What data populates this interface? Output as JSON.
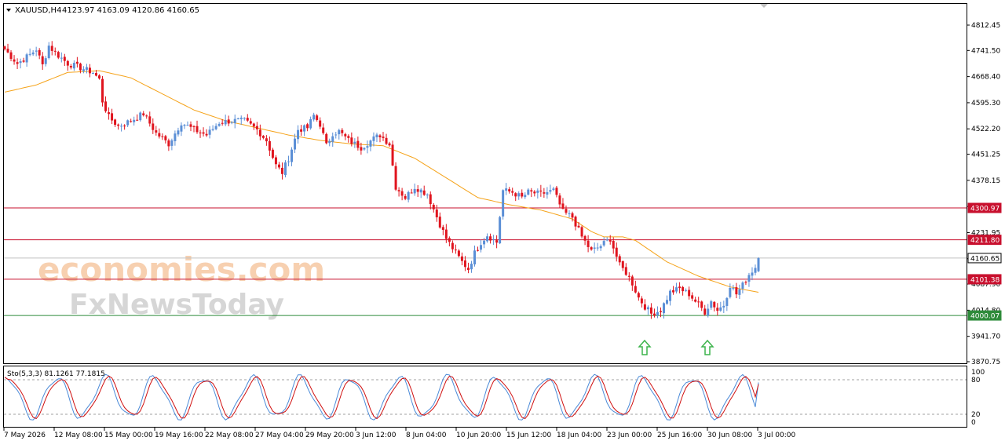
{
  "header": {
    "symbol": "XAUUSD,H4",
    "ohlc": "4123.97 4163.09 4120.86 4160.65"
  },
  "watermark": {
    "line1": "economies.com",
    "line2": "FxNewsToday"
  },
  "colors": {
    "up": "#5b8fd6",
    "down": "#e0141e",
    "ma": "#f5a31a",
    "resistance": "#c8102e",
    "support": "#2e8b3a",
    "price_line": "#c0c0c0",
    "arrow": "#3cb44b",
    "sto_main": "#4a8ad8",
    "sto_signal": "#d01010"
  },
  "price_axis_ticks": [
    "4812.45",
    "4741.50",
    "4668.40",
    "4595.30",
    "4522.20",
    "4451.25",
    "4378.15",
    "4305.05",
    "4231.95",
    "4158.85",
    "4087.90",
    "4014.80",
    "3941.70",
    "3870.75"
  ],
  "time_axis_labels": [
    "7 May 2026",
    "12 May 08:00",
    "15 May 00:00",
    "19 May 16:00",
    "22 May 08:00",
    "27 May 04:00",
    "29 May 20:00",
    "3 Jun 12:00",
    "8 Jun 04:00",
    "10 Jun 20:00",
    "15 Jun 12:00",
    "18 Jun 04:00",
    "23 Jun 00:00",
    "25 Jun 16:00",
    "30 Jun 08:00",
    "3 Jul 00:00"
  ],
  "level_tags": [
    {
      "name": "resistance-3",
      "value": "4300.97",
      "kind": "resistance"
    },
    {
      "name": "resistance-2",
      "value": "4211.80",
      "kind": "resistance"
    },
    {
      "name": "current-price",
      "value": "4160.65",
      "kind": "current"
    },
    {
      "name": "resistance-1",
      "value": "4101.38",
      "kind": "resistance"
    },
    {
      "name": "support-1",
      "value": "4000.07",
      "kind": "support"
    }
  ],
  "oscillator": {
    "label": "Sto(5,3,3) 81.1261 77.1815",
    "ticks": [
      "100",
      "80",
      "20",
      "0"
    ]
  },
  "arrows": [
    {
      "name": "up-arrow-icon-1",
      "near": "23 Jun 00:00"
    },
    {
      "name": "up-arrow-icon-2",
      "near": "25 Jun 16:00"
    }
  ],
  "chart_data": {
    "type": "candlestick",
    "title": "XAUUSD,H4",
    "y_range": [
      3860,
      4830
    ],
    "last": {
      "open": 4123.97,
      "high": 4163.09,
      "low": 4120.86,
      "close": 4160.65
    },
    "horizontal_levels": [
      4300.97,
      4211.8,
      4160.65,
      4101.38,
      4000.07
    ],
    "price_path": [
      [
        0,
        4745
      ],
      [
        4,
        4705
      ],
      [
        8,
        4730
      ],
      [
        10,
        4745
      ],
      [
        12,
        4700
      ],
      [
        14,
        4755
      ],
      [
        16,
        4735
      ],
      [
        20,
        4705
      ],
      [
        25,
        4690
      ],
      [
        28,
        4680
      ],
      [
        30,
        4660
      ],
      [
        31,
        4600
      ],
      [
        33,
        4555
      ],
      [
        36,
        4530
      ],
      [
        40,
        4545
      ],
      [
        44,
        4565
      ],
      [
        48,
        4510
      ],
      [
        52,
        4480
      ],
      [
        56,
        4540
      ],
      [
        60,
        4520
      ],
      [
        64,
        4505
      ],
      [
        68,
        4540
      ],
      [
        72,
        4545
      ],
      [
        76,
        4545
      ],
      [
        80,
        4520
      ],
      [
        83,
        4490
      ],
      [
        86,
        4420
      ],
      [
        88,
        4400
      ],
      [
        90,
        4440
      ],
      [
        93,
        4520
      ],
      [
        96,
        4525
      ],
      [
        98,
        4560
      ],
      [
        100,
        4535
      ],
      [
        102,
        4475
      ],
      [
        104,
        4510
      ],
      [
        106,
        4515
      ],
      [
        109,
        4490
      ],
      [
        113,
        4470
      ],
      [
        117,
        4495
      ],
      [
        119,
        4505
      ],
      [
        122,
        4480
      ],
      [
        124,
        4360
      ],
      [
        127,
        4330
      ],
      [
        130,
        4360
      ],
      [
        134,
        4340
      ],
      [
        138,
        4255
      ],
      [
        140,
        4215
      ],
      [
        143,
        4175
      ],
      [
        145,
        4150
      ],
      [
        147,
        4130
      ],
      [
        149,
        4175
      ],
      [
        151,
        4205
      ],
      [
        153,
        4225
      ],
      [
        156,
        4205
      ],
      [
        158,
        4350
      ],
      [
        161,
        4345
      ],
      [
        164,
        4330
      ],
      [
        166,
        4345
      ],
      [
        170,
        4340
      ],
      [
        174,
        4350
      ],
      [
        177,
        4290
      ],
      [
        180,
        4275
      ],
      [
        183,
        4220
      ],
      [
        186,
        4180
      ],
      [
        189,
        4195
      ],
      [
        192,
        4215
      ],
      [
        195,
        4140
      ],
      [
        197,
        4120
      ],
      [
        199,
        4090
      ],
      [
        201,
        4050
      ],
      [
        203,
        4025
      ],
      [
        205,
        4005
      ],
      [
        208,
        4015
      ],
      [
        211,
        4065
      ],
      [
        214,
        4075
      ],
      [
        217,
        4060
      ],
      [
        220,
        4030
      ],
      [
        222,
        4010
      ],
      [
        224,
        4040
      ],
      [
        226,
        4015
      ],
      [
        228,
        4030
      ],
      [
        230,
        4085
      ],
      [
        232,
        4060
      ],
      [
        234,
        4085
      ],
      [
        236,
        4115
      ],
      [
        238,
        4135
      ],
      [
        239,
        4160.65
      ]
    ],
    "moving_average": [
      [
        0,
        4625
      ],
      [
        10,
        4645
      ],
      [
        20,
        4680
      ],
      [
        30,
        4685
      ],
      [
        40,
        4665
      ],
      [
        50,
        4620
      ],
      [
        60,
        4575
      ],
      [
        70,
        4545
      ],
      [
        80,
        4525
      ],
      [
        90,
        4505
      ],
      [
        100,
        4490
      ],
      [
        110,
        4480
      ],
      [
        120,
        4475
      ],
      [
        130,
        4440
      ],
      [
        140,
        4385
      ],
      [
        150,
        4330
      ],
      [
        160,
        4310
      ],
      [
        170,
        4295
      ],
      [
        180,
        4270
      ],
      [
        186,
        4235
      ],
      [
        190,
        4220
      ],
      [
        196,
        4220
      ],
      [
        200,
        4210
      ],
      [
        210,
        4150
      ],
      [
        220,
        4110
      ],
      [
        230,
        4080
      ],
      [
        239,
        4065
      ]
    ],
    "stochastic": {
      "name": "Sto(5,3,3)",
      "main": 81.1261,
      "signal": 77.1815,
      "levels": [
        80,
        20
      ],
      "y_range": [
        0,
        100
      ]
    }
  }
}
